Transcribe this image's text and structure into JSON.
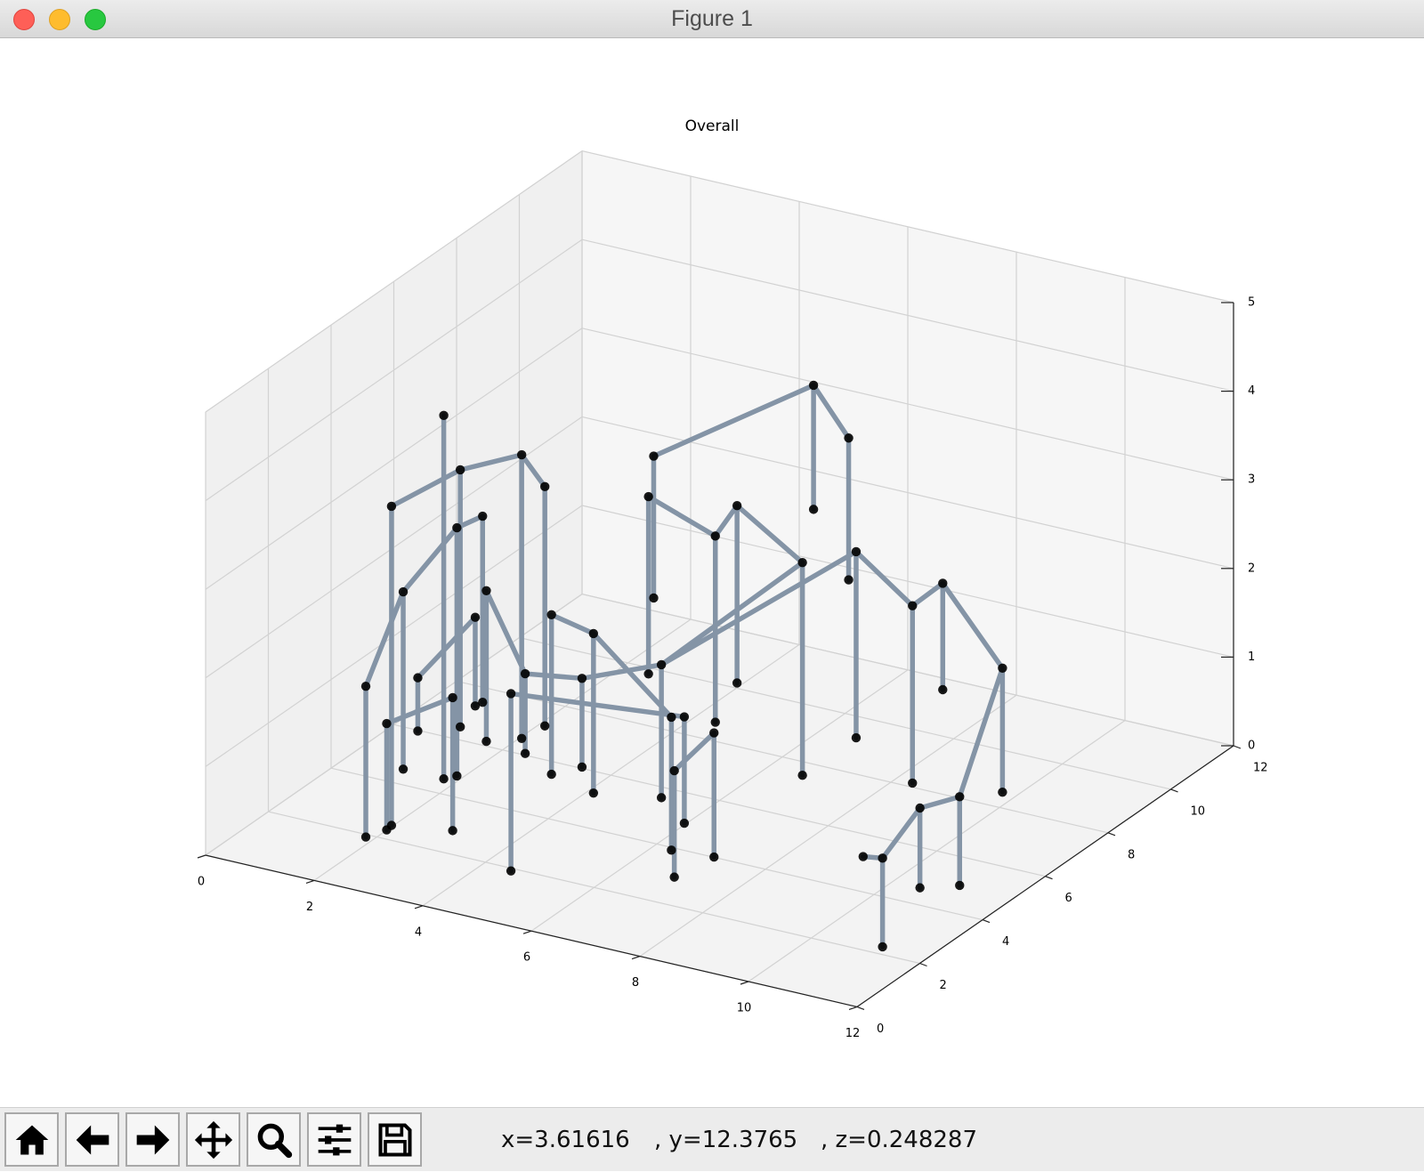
{
  "window": {
    "title": "Figure 1"
  },
  "toolbar": {
    "buttons": [
      {
        "name": "home-button",
        "icon": "home-icon"
      },
      {
        "name": "back-button",
        "icon": "arrow-left-icon"
      },
      {
        "name": "forward-button",
        "icon": "arrow-right-icon"
      },
      {
        "name": "pan-button",
        "icon": "move-icon"
      },
      {
        "name": "zoom-button",
        "icon": "magnifier-icon"
      },
      {
        "name": "configure-subplots-button",
        "icon": "sliders-icon"
      },
      {
        "name": "save-button",
        "icon": "floppy-disk-icon"
      }
    ],
    "coords": {
      "x": "x=3.61616",
      "y": ", y=12.3765",
      "z": ", z=0.248287"
    }
  },
  "chart_data": {
    "type": "3d-line-scatter",
    "title": "Overall",
    "xlim": [
      0,
      12
    ],
    "ylim": [
      0,
      12
    ],
    "zlim": [
      0,
      5
    ],
    "x_ticks": [
      "0",
      "2",
      "4",
      "6",
      "8",
      "10",
      "12"
    ],
    "y_ticks": [
      "0",
      "2",
      "4",
      "6",
      "8",
      "10",
      "12"
    ],
    "z_ticks": [
      "0",
      "1",
      "2",
      "3",
      "4",
      "5"
    ],
    "grid": true,
    "line_color": "#8494a6",
    "marker_color": "#000000",
    "points": [
      [
        3.0,
        2.4,
        4.8
      ],
      [
        3.0,
        2.4,
        0.7
      ],
      [
        2.5,
        1.6,
        3.9
      ],
      [
        2.5,
        1.6,
        0.3
      ],
      [
        2.9,
        3.1,
        4.0
      ],
      [
        2.9,
        3.1,
        1.1
      ],
      [
        3.8,
        3.5,
        4.2
      ],
      [
        3.8,
        3.5,
        1.0
      ],
      [
        4.4,
        3.2,
        4.0
      ],
      [
        4.4,
        3.2,
        1.3
      ],
      [
        3.3,
        2.3,
        3.6
      ],
      [
        3.3,
        2.3,
        0.8
      ],
      [
        3.9,
        2.2,
        3.0
      ],
      [
        3.9,
        2.2,
        1.3
      ],
      [
        2.6,
        1.8,
        2.9
      ],
      [
        2.6,
        1.8,
        0.9
      ],
      [
        3.6,
        2.6,
        3.7
      ],
      [
        3.6,
        2.6,
        1.6
      ],
      [
        2.2,
        1.3,
        1.9
      ],
      [
        2.2,
        1.3,
        0.2
      ],
      [
        5.5,
        4.6,
        3.7
      ],
      [
        5.5,
        4.6,
        1.7
      ],
      [
        4.5,
        2.4,
        2.1
      ],
      [
        4.5,
        2.4,
        1.2
      ],
      [
        6.5,
        5.0,
        3.3
      ],
      [
        6.5,
        5.0,
        1.2
      ],
      [
        6.0,
        3.9,
        4.4
      ],
      [
        6.0,
        3.9,
        2.8
      ],
      [
        6.9,
        5.0,
        3.7
      ],
      [
        6.9,
        5.0,
        1.7
      ],
      [
        7.5,
        6.4,
        4.8
      ],
      [
        7.5,
        6.4,
        3.4
      ],
      [
        7.8,
        7.0,
        4.1
      ],
      [
        7.8,
        7.0,
        2.5
      ],
      [
        5.2,
        3.0,
        2.0
      ],
      [
        5.2,
        3.0,
        1.0
      ],
      [
        6.2,
        3.8,
        2.1
      ],
      [
        6.2,
        3.8,
        0.6
      ],
      [
        7.7,
        5.7,
        3.0
      ],
      [
        7.7,
        5.7,
        0.6
      ],
      [
        5.1,
        2.2,
        2.9
      ],
      [
        5.1,
        2.2,
        1.1
      ],
      [
        8.4,
        6.2,
        3.1
      ],
      [
        8.4,
        6.2,
        1.0
      ],
      [
        6.5,
        3.6,
        1.6
      ],
      [
        6.5,
        3.6,
        0.1
      ],
      [
        5.7,
        2.5,
        2.7
      ],
      [
        5.7,
        2.5,
        0.9
      ],
      [
        3.8,
        1.3,
        2.0
      ],
      [
        3.8,
        1.3,
        0.5
      ],
      [
        2.7,
        1.1,
        1.6
      ],
      [
        2.7,
        1.1,
        0.4
      ],
      [
        6.9,
        3.0,
        1.2
      ],
      [
        6.9,
        3.0,
        0.0
      ],
      [
        7.4,
        3.4,
        1.6
      ],
      [
        7.4,
        3.4,
        0.2
      ],
      [
        4.1,
        1.5,
        2.9
      ],
      [
        4.1,
        1.5,
        1.9
      ],
      [
        3.1,
        1.4,
        2.1
      ],
      [
        3.1,
        1.4,
        1.5
      ],
      [
        4.7,
        1.6,
        2.1
      ],
      [
        4.7,
        1.6,
        0.1
      ],
      [
        7.2,
        2.8,
        1.9
      ],
      [
        7.2,
        2.8,
        0.7
      ],
      [
        9.9,
        5.4,
        2.9
      ],
      [
        9.9,
        5.4,
        0.9
      ],
      [
        10.4,
        5.5,
        3.2
      ],
      [
        10.4,
        5.5,
        2.0
      ],
      [
        11.5,
        5.5,
        2.4
      ],
      [
        11.5,
        5.5,
        1.0
      ],
      [
        11.0,
        5.0,
        1.0
      ],
      [
        11.0,
        5.0,
        0.0
      ],
      [
        10.5,
        4.6,
        0.9
      ],
      [
        10.5,
        4.6,
        0.0
      ],
      [
        10.1,
        4.1,
        0.4
      ],
      [
        10.1,
        4.1,
        -0.6
      ],
      [
        9.8,
        4.0,
        0.4
      ]
    ],
    "segments": [
      [
        0,
        1
      ],
      [
        2,
        3
      ],
      [
        4,
        5
      ],
      [
        6,
        7
      ],
      [
        8,
        9
      ],
      [
        10,
        11
      ],
      [
        12,
        13
      ],
      [
        14,
        15
      ],
      [
        16,
        17
      ],
      [
        18,
        19
      ],
      [
        20,
        21
      ],
      [
        22,
        23
      ],
      [
        24,
        25
      ],
      [
        26,
        27
      ],
      [
        28,
        29
      ],
      [
        30,
        31
      ],
      [
        32,
        33
      ],
      [
        34,
        35
      ],
      [
        36,
        37
      ],
      [
        38,
        39
      ],
      [
        40,
        41
      ],
      [
        42,
        43
      ],
      [
        44,
        45
      ],
      [
        46,
        47
      ],
      [
        48,
        49
      ],
      [
        50,
        51
      ],
      [
        52,
        53
      ],
      [
        54,
        55
      ],
      [
        56,
        57
      ],
      [
        58,
        59
      ],
      [
        60,
        61
      ],
      [
        62,
        63
      ],
      [
        64,
        65
      ],
      [
        66,
        67
      ],
      [
        68,
        69
      ],
      [
        70,
        71
      ],
      [
        72,
        73
      ],
      [
        74,
        75
      ],
      [
        2,
        4
      ],
      [
        4,
        6
      ],
      [
        6,
        8
      ],
      [
        10,
        16
      ],
      [
        14,
        10
      ],
      [
        18,
        14
      ],
      [
        20,
        24
      ],
      [
        24,
        28
      ],
      [
        26,
        30
      ],
      [
        30,
        32
      ],
      [
        34,
        36
      ],
      [
        36,
        38
      ],
      [
        40,
        46
      ],
      [
        46,
        44
      ],
      [
        48,
        50
      ],
      [
        52,
        54
      ],
      [
        56,
        58
      ],
      [
        60,
        62
      ],
      [
        42,
        64
      ],
      [
        64,
        66
      ],
      [
        66,
        68
      ],
      [
        68,
        70
      ],
      [
        70,
        72
      ],
      [
        72,
        74
      ],
      [
        74,
        76
      ],
      [
        12,
        22
      ],
      [
        22,
        34
      ],
      [
        36,
        42
      ],
      [
        28,
        38
      ]
    ]
  }
}
